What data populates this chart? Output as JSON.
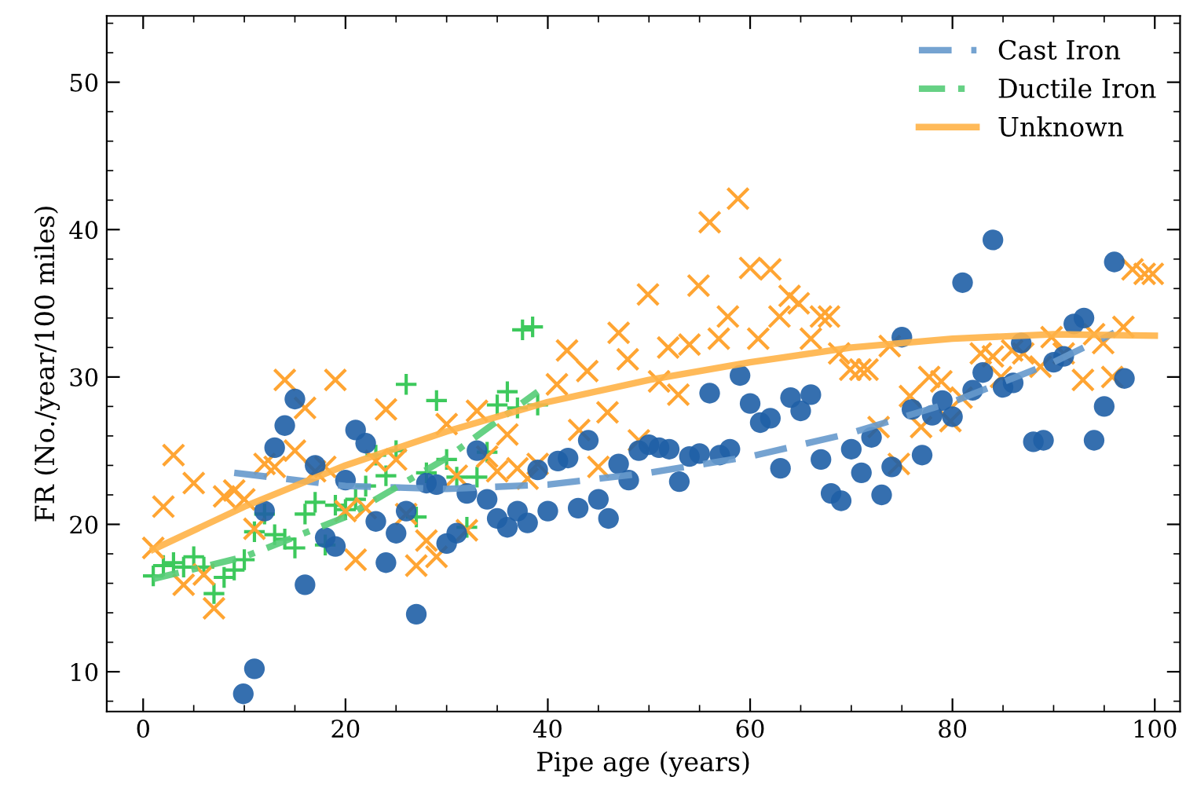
{
  "chart_data": {
    "type": "scatter",
    "xlabel": "Pipe age (years)",
    "ylabel": "FR (No./year/100 miles)",
    "xlim": [
      -3.6,
      102.5
    ],
    "ylim": [
      7.3,
      54.5
    ],
    "xticks": [
      0,
      20,
      40,
      60,
      80,
      100
    ],
    "yticks": [
      10,
      20,
      30,
      40,
      50
    ],
    "legend": "top right",
    "series": [
      {
        "marker": "circle",
        "color": "#1f5fa6",
        "x": [
          9.9,
          11,
          12,
          13,
          14,
          15,
          16,
          17,
          18,
          19,
          20,
          21,
          22,
          23,
          24,
          25,
          26,
          27,
          28,
          29,
          30,
          31,
          32,
          33,
          34,
          35,
          36,
          37,
          38,
          39,
          40,
          41,
          42,
          43,
          44,
          45,
          46,
          47,
          48,
          49,
          50,
          51,
          52,
          53,
          54,
          55,
          56,
          57,
          58,
          59,
          60,
          61,
          62,
          63,
          64,
          65,
          66,
          67,
          68,
          69,
          70,
          71,
          72,
          73,
          74,
          75,
          76,
          77,
          78,
          79,
          80,
          81,
          82,
          83,
          84,
          85,
          86,
          86.8,
          88,
          89,
          90,
          91,
          92,
          93,
          94,
          95,
          96,
          97
        ],
        "values": [
          8.5,
          10.2,
          20.9,
          25.2,
          26.7,
          28.5,
          15.9,
          24,
          19.1,
          18.5,
          23,
          26.4,
          25.5,
          20.2,
          17.4,
          19.4,
          20.9,
          13.9,
          22.8,
          22.7,
          18.7,
          19.4,
          22.1,
          25,
          21.7,
          20.4,
          19.8,
          20.9,
          20.1,
          23.7,
          20.9,
          24.3,
          24.5,
          21.1,
          25.7,
          21.7,
          20.4,
          24.1,
          23,
          25,
          25.4,
          25.2,
          25.1,
          22.9,
          24.6,
          24.8,
          28.9,
          24.7,
          25.1,
          30.1,
          28.2,
          26.9,
          27.2,
          23.8,
          28.6,
          27.7,
          28.8,
          24.4,
          22.1,
          21.6,
          25.1,
          23.5,
          25.9,
          22,
          23.9,
          32.7,
          27.8,
          24.7,
          27.4,
          28.4,
          27.3,
          36.4,
          29.1,
          30.3,
          39.3,
          29.3,
          29.6,
          32.3,
          25.6,
          25.7,
          31,
          31.4,
          33.6,
          34,
          25.7,
          28,
          37.8,
          29.9
        ]
      },
      {
        "marker": "plus",
        "color": "#3dc95c",
        "x": [
          1,
          2,
          3,
          4,
          5,
          6,
          7,
          8,
          9,
          10,
          11,
          12,
          13,
          14,
          15,
          16,
          17,
          18,
          19,
          20,
          21,
          22,
          23,
          24,
          25,
          26,
          27,
          28,
          29,
          30,
          31,
          32,
          33,
          34,
          35,
          36,
          37,
          37.5,
          38.5,
          39
        ],
        "values": [
          16.5,
          17.2,
          17.4,
          17.1,
          17.8,
          17.1,
          15.3,
          16.4,
          16.9,
          17.6,
          19.5,
          20.7,
          19.3,
          19,
          18.4,
          20.7,
          21.5,
          18.6,
          21.3,
          21,
          21.7,
          22.6,
          24.7,
          23.3,
          25,
          29.5,
          20.5,
          23.5,
          28.4,
          24.4,
          23.2,
          19.8,
          23.2,
          24.9,
          28.1,
          29,
          27.9,
          33.2,
          33.4,
          28.1
        ]
      },
      {
        "marker": "cross",
        "color": "#ffa533",
        "x": [
          1,
          2,
          3,
          4,
          5,
          6,
          7,
          8,
          9,
          10,
          11,
          12,
          13,
          14,
          15,
          16,
          17,
          18,
          19,
          20,
          21,
          22,
          23,
          24,
          25,
          26,
          27,
          28,
          29,
          30,
          31,
          32,
          33,
          34,
          35,
          36,
          37,
          38,
          39,
          40.9,
          41.9,
          43.1,
          43.9,
          45,
          45.9,
          47,
          47.9,
          49,
          49.9,
          51,
          51.9,
          52.9,
          54,
          54.9,
          56,
          56.9,
          57.8,
          58.8,
          60,
          60.8,
          62,
          62.9,
          63.9,
          64.8,
          66,
          67,
          67.8,
          68.8,
          69.9,
          70.9,
          71.6,
          72.7,
          73.8,
          74.7,
          75.8,
          76.9,
          77.7,
          78.9,
          79.8,
          80.9,
          82.8,
          84,
          84.8,
          85.9,
          87,
          88.7,
          89.8,
          91,
          92.9,
          94,
          94.9,
          95.8,
          96.9,
          97.8,
          99,
          99.8
        ],
        "values": [
          18.4,
          21.2,
          24.7,
          15.9,
          22.8,
          16.6,
          14.3,
          21.9,
          22.3,
          21.7,
          19.7,
          24.1,
          23.9,
          29.8,
          25,
          27.9,
          23.6,
          23.9,
          29.8,
          20.9,
          17.6,
          21.1,
          24.3,
          27.8,
          24.4,
          20.7,
          17.2,
          18.9,
          17.8,
          26.8,
          23.3,
          19.6,
          27.7,
          24.6,
          23.6,
          26.1,
          23.8,
          23.1,
          24.1,
          29.5,
          31.8,
          26.4,
          30.4,
          23.9,
          27.6,
          33,
          31.2,
          25.7,
          35.6,
          29.7,
          32,
          28.8,
          32.2,
          36.2,
          40.5,
          32.6,
          34.1,
          42.1,
          37.4,
          32.6,
          37.3,
          34.1,
          35.5,
          35,
          32.6,
          34.1,
          34.1,
          31.6,
          30.5,
          30.5,
          30.5,
          26.6,
          32.1,
          24.1,
          28.7,
          26.6,
          30,
          29.7,
          27,
          28.6,
          31.6,
          31.4,
          30,
          31.8,
          31.6,
          30.7,
          32.7,
          31.6,
          29.8,
          32.9,
          32.3,
          30,
          33.4,
          37.3,
          37,
          37
        ]
      },
      {
        "type": "line",
        "name": "Cast Iron",
        "line_style": "dashed",
        "color": "#6699cc",
        "x": [
          9,
          20,
          30,
          40,
          50,
          60,
          70,
          80,
          90,
          96
        ],
        "values": [
          23.5,
          22.6,
          22.4,
          22.7,
          23.5,
          24.6,
          26.2,
          28.3,
          31,
          33
        ]
      },
      {
        "type": "line",
        "name": "Ductile Iron",
        "line_style": "dashdot",
        "color": "#55cc77",
        "x": [
          1,
          10,
          20,
          30,
          39
        ],
        "values": [
          16.3,
          17.8,
          20.5,
          24.5,
          29
        ]
      },
      {
        "type": "line",
        "name": "Unknown",
        "line_style": "solid",
        "color": "#ffb347",
        "x": [
          1,
          10,
          20,
          30,
          40,
          50,
          60,
          70,
          80,
          90,
          100
        ],
        "values": [
          18.3,
          21.2,
          24,
          26.3,
          28.3,
          29.8,
          31,
          32,
          32.6,
          32.9,
          32.8
        ]
      }
    ]
  }
}
